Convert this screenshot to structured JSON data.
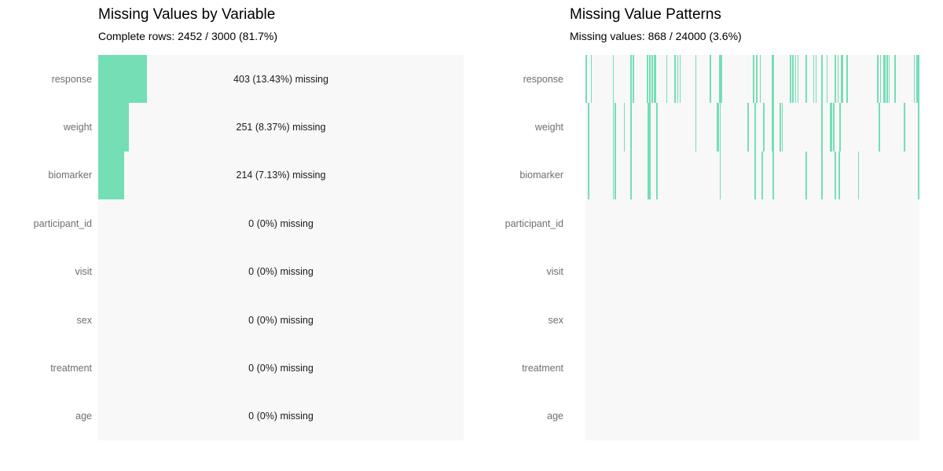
{
  "colors": {
    "accent": "#74deb5",
    "plot_bg": "#f8f8f8",
    "axis_label": "#6e6e6e",
    "value_text": "#1a1a1a",
    "title_text": "#000000",
    "figure_bg": "#ffffff"
  },
  "left_panel": {
    "title": "Missing Values by Variable",
    "subtitle": "Complete rows: 2452 / 3000 (81.7%)"
  },
  "right_panel": {
    "title": "Missing Value Patterns",
    "subtitle": "Missing values: 868 / 24000 (3.6%)"
  },
  "chart_data": [
    {
      "type": "bar",
      "orientation": "horizontal",
      "title": "Missing Values by Variable",
      "subtitle": "Complete rows: 2452 / 3000 (81.7%)",
      "categories": [
        "response",
        "weight",
        "biomarker",
        "participant_id",
        "visit",
        "sex",
        "treatment",
        "age"
      ],
      "missing_counts": [
        403,
        251,
        214,
        0,
        0,
        0,
        0,
        0
      ],
      "missing_pct": [
        13.43,
        8.37,
        7.13,
        0,
        0,
        0,
        0,
        0
      ],
      "bar_labels": [
        "403 (13.43%) missing",
        "251 (8.37%) missing",
        "214 (7.13%) missing",
        "0 (0%) missing",
        "0 (0%) missing",
        "0 (0%) missing",
        "0 (0%) missing",
        "0 (0%) missing"
      ],
      "xlim": [
        0,
        100
      ],
      "grid": false,
      "legend": false,
      "complete_rows": 2452,
      "total_rows": 3000,
      "complete_rows_pct": 81.7
    },
    {
      "type": "heatmap",
      "subtype": "missingness-pattern",
      "title": "Missing Value Patterns",
      "subtitle": "Missing values: 868 / 24000 (3.6%)",
      "categories": [
        "response",
        "weight",
        "biomarker",
        "participant_id",
        "visit",
        "sex",
        "treatment",
        "age"
      ],
      "total_missing": 868,
      "total_cells": 24000,
      "total_missing_pct": 3.6,
      "grid": false,
      "legend": false,
      "missing_positions_frac": {
        "response": [
          0.001,
          0.016,
          0.082,
          0.134,
          0.141,
          0.184,
          0.191,
          0.198,
          0.205,
          0.209,
          0.242,
          0.266,
          0.275,
          0.282,
          0.329,
          0.372,
          0.4,
          0.405,
          0.501,
          0.511,
          0.522,
          0.558,
          0.562,
          0.612,
          0.619,
          0.628,
          0.635,
          0.659,
          0.682,
          0.689,
          0.706,
          0.722,
          0.746,
          0.755,
          0.765,
          0.769,
          0.781,
          0.873,
          0.882,
          0.892,
          0.896,
          0.901,
          0.908,
          0.925,
          0.983,
          0.991,
          0.998
        ],
        "weight": [
          0.007,
          0.082,
          0.087,
          0.115,
          0.134,
          0.186,
          0.191,
          0.212,
          0.329,
          0.393,
          0.397,
          0.402,
          0.485,
          0.506,
          0.532,
          0.558,
          0.562,
          0.581,
          0.588,
          0.706,
          0.732,
          0.736,
          0.741,
          0.76,
          0.878,
          0.953,
          0.998
        ],
        "biomarker": [
          0.007,
          0.082,
          0.087,
          0.134,
          0.186,
          0.191,
          0.212,
          0.402,
          0.506,
          0.527,
          0.56,
          0.659,
          0.706,
          0.746,
          0.758,
          0.816,
          0.998
        ],
        "participant_id": [],
        "visit": [],
        "sex": [],
        "treatment": [],
        "age": []
      }
    }
  ]
}
